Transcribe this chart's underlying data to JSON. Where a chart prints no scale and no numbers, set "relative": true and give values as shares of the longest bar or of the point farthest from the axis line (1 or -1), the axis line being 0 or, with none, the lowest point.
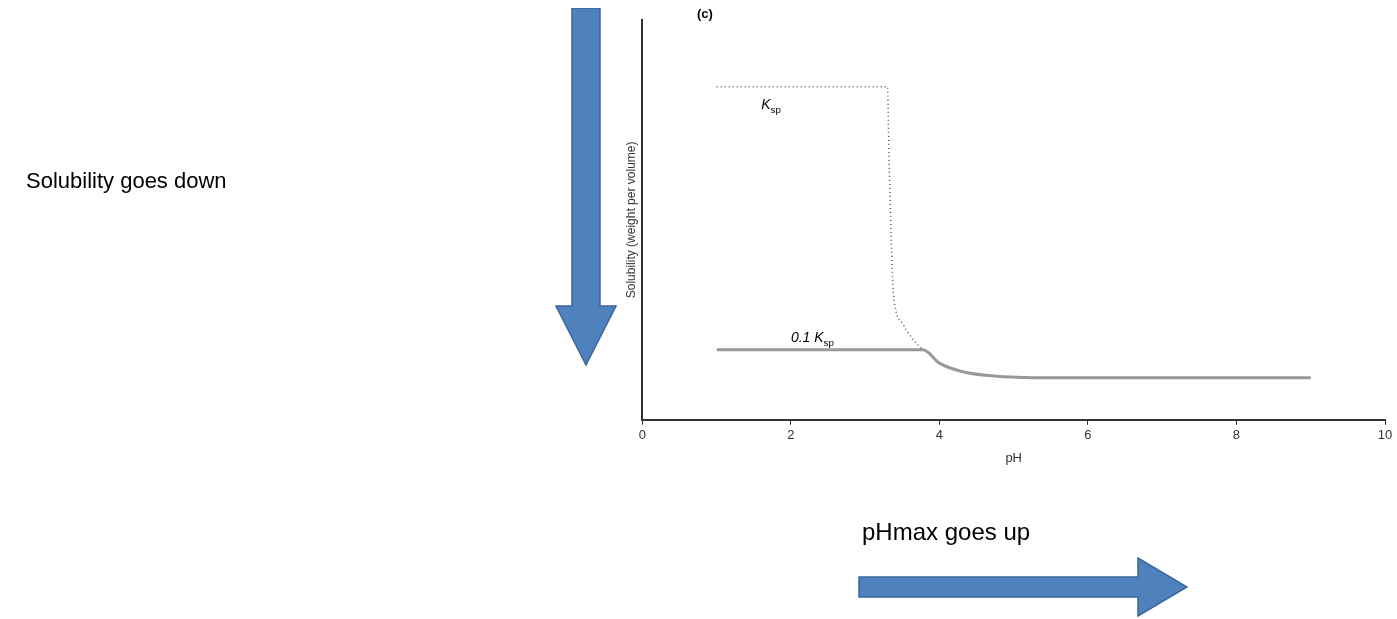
{
  "chart_data": {
    "type": "line",
    "relative": true,
    "xlabel": "pH",
    "ylabel": "Solubility (weight per volume)",
    "xlim": [
      0,
      10
    ],
    "xticks": [
      0,
      2,
      4,
      6,
      8,
      10
    ],
    "grid": false,
    "legend": false,
    "marker": "none",
    "line_style": "solid",
    "series": [
      {
        "color": "#555555",
        "line_style": "dotted",
        "x": [
          1,
          3.3,
          3.32,
          3.35,
          3.38,
          3.5,
          3.65,
          3.78
        ],
        "values": [
          1,
          1,
          0.8,
          0.55,
          0.38,
          0.29,
          0.24,
          0.21
        ]
      },
      {
        "color": "#999999",
        "x": [
          1,
          3.78,
          4.0,
          4.3,
          4.7,
          5.5,
          9
        ],
        "values": [
          0.21,
          0.21,
          0.17,
          0.145,
          0.132,
          0.126,
          0.126
        ]
      }
    ],
    "annotations": [
      "(c)",
      {
        "text": "K$_{sp}$",
        "x": 1.6,
        "y": 1
      },
      {
        "text": "0.1 K$_{sp}$",
        "x": 2,
        "y": 0.21
      },
      "Solubility goes down",
      "pHmax goes up"
    ]
  }
}
